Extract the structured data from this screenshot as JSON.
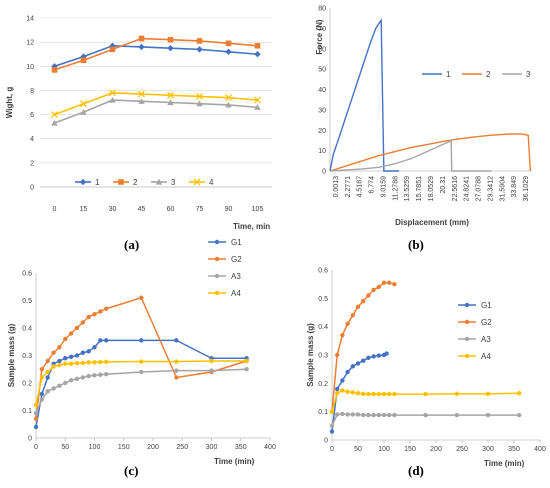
{
  "panel_labels": [
    "(a)",
    "(b)",
    "(c)",
    "(d)"
  ],
  "chart_data": [
    {
      "type": "line",
      "xlabel": "Time, min",
      "ylabel": "Wight, g",
      "x": [
        0,
        15,
        30,
        45,
        60,
        75,
        90,
        105
      ],
      "x_tick_labels": [
        "0",
        "15",
        "30",
        "45",
        "60",
        "75",
        "90",
        "105"
      ],
      "ylim": [
        0,
        14
      ],
      "y_ticks": [
        0,
        2,
        4,
        6,
        8,
        10,
        12,
        14
      ],
      "legend_position": "bottom",
      "series": [
        {
          "name": "1",
          "color": "#4472C4",
          "marker": "diamond",
          "values": [
            10.0,
            10.8,
            11.7,
            11.6,
            11.5,
            11.4,
            11.2,
            11.0
          ]
        },
        {
          "name": "2",
          "color": "#ED7D31",
          "marker": "square",
          "values": [
            9.7,
            10.5,
            11.4,
            12.3,
            12.2,
            12.1,
            11.9,
            11.7
          ]
        },
        {
          "name": "3",
          "color": "#A5A5A5",
          "marker": "triangle",
          "values": [
            5.3,
            6.2,
            7.2,
            7.1,
            7.0,
            6.9,
            6.8,
            6.6
          ]
        },
        {
          "name": "4",
          "color": "#FFC000",
          "marker": "x",
          "values": [
            6.0,
            6.9,
            7.8,
            7.7,
            7.6,
            7.5,
            7.4,
            7.2
          ]
        }
      ]
    },
    {
      "type": "line",
      "xlabel": "Displacement (mm)",
      "ylabel": "Force (N)",
      "x_tick_labels": [
        "0.0013",
        "2.2771",
        "4.5187",
        "6.774",
        "9.0159",
        "11.2788",
        "13.5259",
        "15.7851",
        "18.0529",
        "20.31",
        "22.5616",
        "24.8241",
        "27.0788",
        "29.3412",
        "31.5904",
        "33.849",
        "36.1029"
      ],
      "ylim": [
        0,
        80
      ],
      "y_ticks": [
        0,
        10,
        20,
        30,
        40,
        50,
        60,
        70,
        80
      ],
      "legend_position": "right",
      "series": [
        {
          "name": "1",
          "color": "#4472C4",
          "points": [
            [
              0,
              0
            ],
            [
              0.6,
              8
            ],
            [
              1.5,
              15
            ],
            [
              2.5,
              23
            ],
            [
              3.5,
              31
            ],
            [
              4.5,
              39
            ],
            [
              5.5,
              47
            ],
            [
              6.5,
              55
            ],
            [
              7.5,
              63
            ],
            [
              8.5,
              70
            ],
            [
              9.5,
              74
            ],
            [
              10.0,
              0
            ],
            [
              12.8,
              0
            ]
          ]
        },
        {
          "name": "2",
          "color": "#ED7D31",
          "points": [
            [
              0,
              0
            ],
            [
              3,
              2.5
            ],
            [
              6,
              5
            ],
            [
              9,
              7.5
            ],
            [
              12,
              9.5
            ],
            [
              15,
              11.5
            ],
            [
              18,
              13
            ],
            [
              21,
              14.5
            ],
            [
              24,
              15.8
            ],
            [
              27,
              16.8
            ],
            [
              30,
              17.6
            ],
            [
              33,
              18.1
            ],
            [
              35.5,
              18.2
            ],
            [
              36.8,
              17.5
            ],
            [
              37.2,
              0
            ]
          ]
        },
        {
          "name": "3",
          "color": "#A5A5A5",
          "points": [
            [
              0,
              0
            ],
            [
              3,
              0.5
            ],
            [
              6,
              1
            ],
            [
              9,
              1.8
            ],
            [
              12,
              3.5
            ],
            [
              15,
              6
            ],
            [
              18,
              9.5
            ],
            [
              20.5,
              12.5
            ],
            [
              22.5,
              14.8
            ],
            [
              22.6,
              0
            ],
            [
              30,
              0
            ]
          ]
        }
      ]
    },
    {
      "type": "line",
      "xlabel": "Time (min)",
      "ylabel": "Sample mass (g)",
      "xlim": [
        0,
        400
      ],
      "x_ticks": [
        0,
        50,
        100,
        150,
        200,
        250,
        300,
        350,
        400
      ],
      "ylim": [
        0,
        0.6
      ],
      "y_ticks": [
        0,
        0.1,
        0.2,
        0.3,
        0.4,
        0.5,
        0.6
      ],
      "legend_position": "top-right",
      "series": [
        {
          "name": "G1",
          "color": "#4472C4",
          "points": [
            [
              0,
              0.04
            ],
            [
              10,
              0.16
            ],
            [
              20,
              0.22
            ],
            [
              30,
              0.27
            ],
            [
              40,
              0.28
            ],
            [
              50,
              0.29
            ],
            [
              60,
              0.295
            ],
            [
              70,
              0.3
            ],
            [
              80,
              0.31
            ],
            [
              90,
              0.315
            ],
            [
              100,
              0.33
            ],
            [
              110,
              0.355
            ],
            [
              120,
              0.355
            ],
            [
              180,
              0.355
            ],
            [
              240,
              0.355
            ],
            [
              300,
              0.29
            ],
            [
              360,
              0.29
            ]
          ]
        },
        {
          "name": "G2",
          "color": "#ED7D31",
          "points": [
            [
              0,
              0.07
            ],
            [
              10,
              0.25
            ],
            [
              20,
              0.28
            ],
            [
              30,
              0.31
            ],
            [
              40,
              0.33
            ],
            [
              50,
              0.36
            ],
            [
              60,
              0.38
            ],
            [
              70,
              0.4
            ],
            [
              80,
              0.42
            ],
            [
              90,
              0.44
            ],
            [
              100,
              0.45
            ],
            [
              110,
              0.46
            ],
            [
              120,
              0.47
            ],
            [
              180,
              0.51
            ],
            [
              240,
              0.22
            ],
            [
              300,
              0.24
            ],
            [
              360,
              0.28
            ]
          ]
        },
        {
          "name": "A3",
          "color": "#A5A5A5",
          "points": [
            [
              0,
              0.09
            ],
            [
              10,
              0.14
            ],
            [
              20,
              0.17
            ],
            [
              30,
              0.18
            ],
            [
              40,
              0.19
            ],
            [
              50,
              0.2
            ],
            [
              60,
              0.21
            ],
            [
              70,
              0.215
            ],
            [
              80,
              0.22
            ],
            [
              90,
              0.225
            ],
            [
              100,
              0.228
            ],
            [
              110,
              0.23
            ],
            [
              120,
              0.232
            ],
            [
              180,
              0.24
            ],
            [
              240,
              0.245
            ],
            [
              300,
              0.245
            ],
            [
              360,
              0.25
            ]
          ]
        },
        {
          "name": "A4",
          "color": "#FFC000",
          "points": [
            [
              0,
              0.12
            ],
            [
              10,
              0.22
            ],
            [
              20,
              0.24
            ],
            [
              30,
              0.26
            ],
            [
              40,
              0.265
            ],
            [
              50,
              0.27
            ],
            [
              60,
              0.27
            ],
            [
              70,
              0.272
            ],
            [
              80,
              0.273
            ],
            [
              90,
              0.275
            ],
            [
              100,
              0.275
            ],
            [
              110,
              0.276
            ],
            [
              120,
              0.277
            ],
            [
              180,
              0.278
            ],
            [
              240,
              0.278
            ],
            [
              300,
              0.28
            ],
            [
              360,
              0.28
            ]
          ]
        }
      ]
    },
    {
      "type": "line",
      "xlabel": "Time (min)",
      "ylabel": "Sample mass (g)",
      "xlim": [
        0,
        400
      ],
      "x_ticks": [
        0,
        50,
        100,
        150,
        200,
        250,
        300,
        350,
        400
      ],
      "ylim": [
        0,
        0.6
      ],
      "y_ticks": [
        0,
        0.1,
        0.2,
        0.3,
        0.4,
        0.5,
        0.6
      ],
      "legend_position": "right",
      "series": [
        {
          "name": "G1",
          "color": "#4472C4",
          "points": [
            [
              0,
              0.03
            ],
            [
              10,
              0.18
            ],
            [
              20,
              0.21
            ],
            [
              30,
              0.24
            ],
            [
              40,
              0.26
            ],
            [
              50,
              0.27
            ],
            [
              60,
              0.28
            ],
            [
              70,
              0.29
            ],
            [
              80,
              0.295
            ],
            [
              90,
              0.298
            ],
            [
              100,
              0.3
            ],
            [
              105,
              0.305
            ]
          ]
        },
        {
          "name": "G2",
          "color": "#ED7D31",
          "points": [
            [
              0,
              0.1
            ],
            [
              10,
              0.3
            ],
            [
              20,
              0.37
            ],
            [
              30,
              0.41
            ],
            [
              40,
              0.44
            ],
            [
              50,
              0.47
            ],
            [
              60,
              0.49
            ],
            [
              70,
              0.51
            ],
            [
              80,
              0.53
            ],
            [
              90,
              0.54
            ],
            [
              100,
              0.555
            ],
            [
              110,
              0.555
            ],
            [
              120,
              0.55
            ]
          ]
        },
        {
          "name": "A3",
          "color": "#A5A5A5",
          "points": [
            [
              0,
              0.05
            ],
            [
              10,
              0.09
            ],
            [
              20,
              0.092
            ],
            [
              30,
              0.09
            ],
            [
              40,
              0.09
            ],
            [
              50,
              0.09
            ],
            [
              60,
              0.088
            ],
            [
              70,
              0.088
            ],
            [
              80,
              0.088
            ],
            [
              90,
              0.088
            ],
            [
              100,
              0.088
            ],
            [
              110,
              0.088
            ],
            [
              120,
              0.088
            ],
            [
              180,
              0.088
            ],
            [
              240,
              0.088
            ],
            [
              300,
              0.088
            ],
            [
              360,
              0.088
            ]
          ]
        },
        {
          "name": "A4",
          "color": "#FFC000",
          "points": [
            [
              0,
              0.1
            ],
            [
              10,
              0.165
            ],
            [
              20,
              0.175
            ],
            [
              30,
              0.17
            ],
            [
              40,
              0.168
            ],
            [
              50,
              0.165
            ],
            [
              60,
              0.163
            ],
            [
              70,
              0.162
            ],
            [
              80,
              0.162
            ],
            [
              90,
              0.162
            ],
            [
              100,
              0.162
            ],
            [
              110,
              0.162
            ],
            [
              120,
              0.162
            ],
            [
              180,
              0.162
            ],
            [
              240,
              0.163
            ],
            [
              300,
              0.163
            ],
            [
              360,
              0.165
            ]
          ]
        }
      ]
    }
  ]
}
